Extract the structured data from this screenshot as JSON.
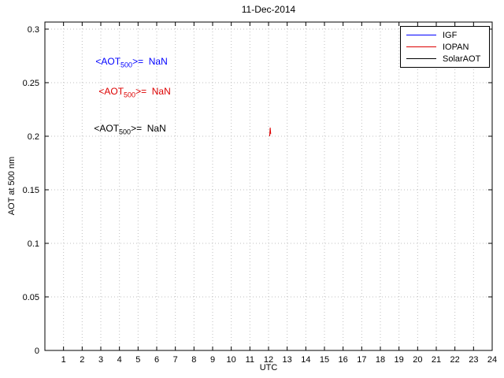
{
  "chart_data": {
    "type": "line",
    "title": "11-Dec-2014",
    "xlabel": "UTC",
    "ylabel": "AOT at 500 nm",
    "xlim": [
      0,
      24
    ],
    "ylim": [
      0,
      0.3066
    ],
    "xticks": [
      1,
      2,
      3,
      4,
      5,
      6,
      7,
      8,
      9,
      10,
      11,
      12,
      13,
      14,
      15,
      16,
      17,
      18,
      19,
      20,
      21,
      22,
      23,
      24
    ],
    "yticks": [
      0,
      0.05,
      0.1,
      0.15,
      0.2,
      0.25,
      0.3
    ],
    "ytick_labels": [
      "0",
      "0.05",
      "0.1",
      "0.15",
      "0.2",
      "0.25",
      "0.3"
    ],
    "grid": true,
    "legend_position": "top-right",
    "series": [
      {
        "name": "IGF",
        "color": "#0000ff",
        "points": []
      },
      {
        "name": "IOPAN",
        "color": "#dd0000",
        "points": [
          [
            12.06,
            0.2
          ],
          [
            12.09,
            0.208
          ],
          [
            12.12,
            0.202
          ]
        ]
      },
      {
        "name": "SolarAOT",
        "color": "#000000",
        "points": []
      }
    ]
  },
  "annotations": [
    {
      "pre": "<AOT",
      "sub": "500",
      "post": ">=  NaN",
      "color": "#0000ff"
    },
    {
      "pre": "<AOT",
      "sub": "500",
      "post": ">=  NaN",
      "color": "#dd0000"
    },
    {
      "pre": "<AOT",
      "sub": "500",
      "post": ">=  NaN",
      "color": "#000000"
    }
  ],
  "legend": {
    "items": [
      {
        "label": "IGF"
      },
      {
        "label": "IOPAN"
      },
      {
        "label": "SolarAOT"
      }
    ]
  }
}
